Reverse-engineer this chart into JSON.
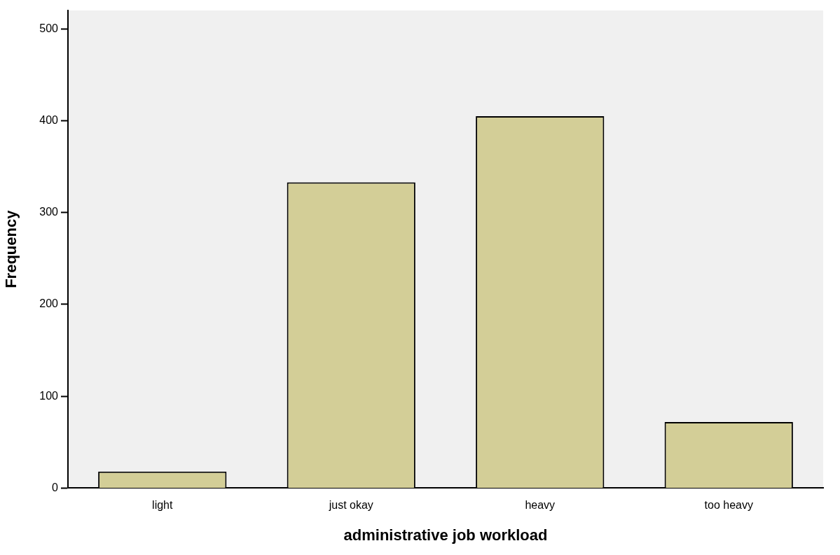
{
  "chart_data": {
    "type": "bar",
    "xlabel": "administrative job workload",
    "ylabel": "Frequency",
    "categories": [
      "light",
      "just okay",
      "heavy",
      "too heavy"
    ],
    "values": [
      18,
      333,
      405,
      72
    ],
    "color": "#d3ce97",
    "ylim": [
      0,
      520
    ],
    "yticks": [
      0,
      100,
      200,
      300,
      400,
      500
    ],
    "grid": false,
    "legend": false
  }
}
